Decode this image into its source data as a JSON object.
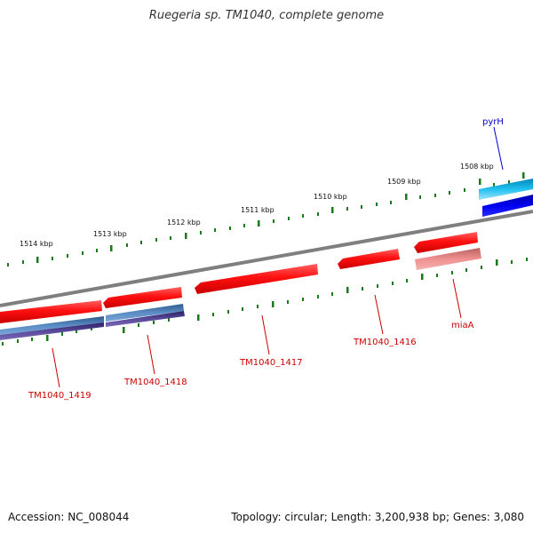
{
  "title": "Ruegeria sp. TM1040, complete genome",
  "footer": {
    "accession": "Accession: NC_008044",
    "summary": "Topology: circular; Length: 3,200,938 bp; Genes: 3,080"
  },
  "ruler": {
    "unit": "kbp",
    "labels": [
      "1508 kbp",
      "1509 kbp",
      "1510 kbp",
      "1511 kbp",
      "1512 kbp",
      "1513 kbp",
      "1514 kbp"
    ]
  },
  "genes": [
    {
      "name": "pyrH",
      "strand": "forward",
      "track": "outer",
      "label_color": "#0000cc"
    },
    {
      "name": "miaA",
      "strand": "reverse",
      "track": "inner",
      "label_color": "#cc0000"
    },
    {
      "name": "TM1040_1416",
      "strand": "reverse",
      "track": "inner",
      "label_color": "#cc0000"
    },
    {
      "name": "TM1040_1417",
      "strand": "reverse",
      "track": "inner",
      "label_color": "#cc0000"
    },
    {
      "name": "TM1040_1418",
      "strand": "reverse",
      "track": "inner",
      "label_color": "#cc0000"
    },
    {
      "name": "TM1040_1419",
      "strand": "reverse",
      "track": "inner",
      "label_color": "#cc0000"
    }
  ],
  "colors": {
    "backbone": "#7f7f7f",
    "tick": "#1a7a1a",
    "cds_red": "#e60000",
    "cds_blue": "#0000e6",
    "cds_cyan": "#19b5e6",
    "rna_pink": "#e07070",
    "feature_steelblue": "#4a78b0",
    "feature_purple": "#4a3c8a"
  }
}
